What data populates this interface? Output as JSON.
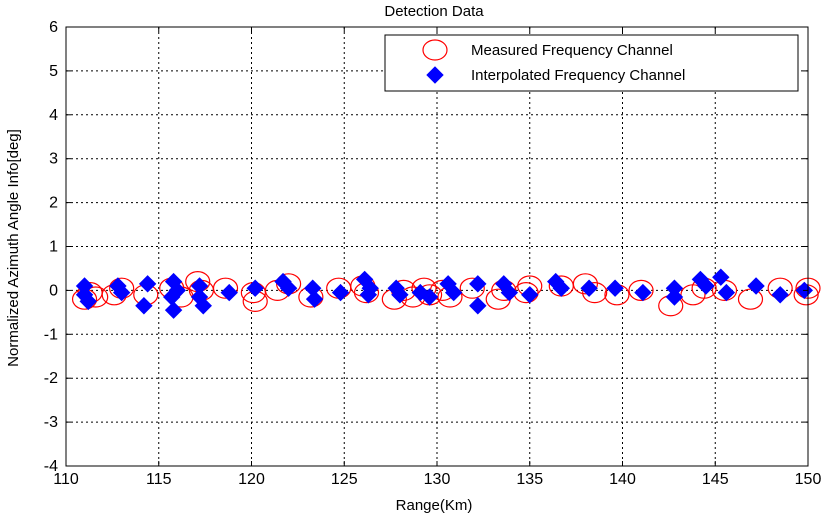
{
  "chart_data": {
    "type": "scatter",
    "title": "Detection Data",
    "xlabel": "Range(Km)",
    "ylabel": "Normalized Azimuth Angle Info[deg]",
    "xlim": [
      110,
      150
    ],
    "ylim": [
      -4,
      6
    ],
    "xticks": [
      110,
      115,
      120,
      125,
      130,
      135,
      140,
      145,
      150
    ],
    "yticks": [
      -4,
      -3,
      -2,
      -1,
      0,
      1,
      2,
      3,
      4,
      5,
      6
    ],
    "grid": true,
    "legend_position": "top-right",
    "series": [
      {
        "name": "Measured Frequency Channel",
        "marker": "circle-open",
        "color": "#ff0000",
        "points": [
          [
            111.0,
            -0.2
          ],
          [
            111.3,
            -0.05
          ],
          [
            111.6,
            -0.15
          ],
          [
            112.6,
            -0.1
          ],
          [
            113.0,
            0.05
          ],
          [
            114.3,
            -0.1
          ],
          [
            115.7,
            0.05
          ],
          [
            116.2,
            -0.15
          ],
          [
            117.1,
            0.2
          ],
          [
            117.3,
            0.0
          ],
          [
            118.6,
            0.05
          ],
          [
            120.1,
            -0.05
          ],
          [
            120.2,
            -0.25
          ],
          [
            121.4,
            0.0
          ],
          [
            122.0,
            0.15
          ],
          [
            123.2,
            -0.15
          ],
          [
            124.7,
            0.05
          ],
          [
            126.0,
            0.1
          ],
          [
            126.2,
            -0.05
          ],
          [
            127.7,
            -0.2
          ],
          [
            128.2,
            0.0
          ],
          [
            128.7,
            -0.15
          ],
          [
            129.3,
            0.05
          ],
          [
            129.6,
            -0.1
          ],
          [
            130.3,
            0.0
          ],
          [
            130.7,
            -0.15
          ],
          [
            131.9,
            0.05
          ],
          [
            133.3,
            -0.2
          ],
          [
            133.6,
            0.0
          ],
          [
            135.0,
            0.1
          ],
          [
            134.8,
            -0.05
          ],
          [
            136.7,
            0.1
          ],
          [
            138.0,
            0.15
          ],
          [
            138.5,
            -0.05
          ],
          [
            139.7,
            -0.1
          ],
          [
            141.0,
            0.0
          ],
          [
            142.6,
            -0.35
          ],
          [
            143.8,
            -0.1
          ],
          [
            144.4,
            0.05
          ],
          [
            145.5,
            0.0
          ],
          [
            146.9,
            -0.2
          ],
          [
            148.5,
            0.05
          ],
          [
            149.9,
            -0.1
          ],
          [
            150.0,
            0.05
          ]
        ]
      },
      {
        "name": "Interpolated Frequency Channel",
        "marker": "diamond-filled",
        "color": "#0000ff",
        "points": [
          [
            111.0,
            0.1
          ],
          [
            111.0,
            -0.1
          ],
          [
            111.2,
            -0.25
          ],
          [
            112.8,
            0.1
          ],
          [
            113.0,
            -0.05
          ],
          [
            114.2,
            -0.35
          ],
          [
            114.4,
            0.15
          ],
          [
            115.7,
            -0.15
          ],
          [
            115.8,
            0.2
          ],
          [
            115.8,
            -0.45
          ],
          [
            116.0,
            0.0
          ],
          [
            117.2,
            0.1
          ],
          [
            117.2,
            -0.15
          ],
          [
            117.4,
            -0.35
          ],
          [
            118.8,
            -0.05
          ],
          [
            120.2,
            0.05
          ],
          [
            121.7,
            0.2
          ],
          [
            122.0,
            0.05
          ],
          [
            123.3,
            0.05
          ],
          [
            123.4,
            -0.2
          ],
          [
            124.8,
            -0.05
          ],
          [
            126.1,
            0.25
          ],
          [
            126.4,
            0.05
          ],
          [
            126.3,
            -0.1
          ],
          [
            127.8,
            0.05
          ],
          [
            128.0,
            -0.1
          ],
          [
            129.1,
            -0.05
          ],
          [
            129.6,
            -0.15
          ],
          [
            130.6,
            0.15
          ],
          [
            130.9,
            -0.05
          ],
          [
            132.2,
            0.15
          ],
          [
            132.2,
            -0.35
          ],
          [
            133.6,
            0.15
          ],
          [
            133.9,
            -0.05
          ],
          [
            135.0,
            -0.1
          ],
          [
            136.4,
            0.2
          ],
          [
            136.7,
            0.05
          ],
          [
            138.2,
            0.05
          ],
          [
            139.6,
            0.05
          ],
          [
            141.1,
            -0.05
          ],
          [
            142.8,
            0.05
          ],
          [
            142.8,
            -0.15
          ],
          [
            144.2,
            0.25
          ],
          [
            144.5,
            0.1
          ],
          [
            145.3,
            0.3
          ],
          [
            145.6,
            -0.05
          ],
          [
            147.2,
            0.1
          ],
          [
            148.5,
            -0.1
          ],
          [
            149.8,
            0.0
          ]
        ]
      }
    ]
  }
}
